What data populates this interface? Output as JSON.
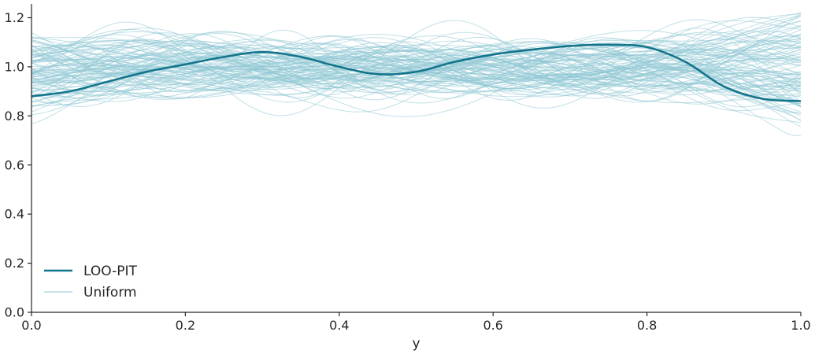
{
  "chart_data": {
    "type": "line",
    "title": "",
    "xlabel": "y",
    "ylabel": "",
    "xlim": [
      0,
      1
    ],
    "ylim": [
      0,
      1.25
    ],
    "xticks": [
      "0.0",
      "0.2",
      "0.4",
      "0.6",
      "0.8",
      "1.0"
    ],
    "yticks": [
      "0.0",
      "0.2",
      "0.4",
      "0.6",
      "0.8",
      "1.0",
      "1.2"
    ],
    "grid": false,
    "legend": "lower-left",
    "colors": {
      "loo_pit": "#13758c",
      "uniform": "#8ec7d4",
      "axis": "#262626"
    },
    "series": [
      {
        "name": "LOO-PIT",
        "x": [
          0.0,
          0.05,
          0.1,
          0.15,
          0.2,
          0.25,
          0.3,
          0.35,
          0.4,
          0.45,
          0.5,
          0.55,
          0.6,
          0.65,
          0.7,
          0.75,
          0.8,
          0.85,
          0.9,
          0.95,
          1.0
        ],
        "y": [
          0.88,
          0.9,
          0.94,
          0.98,
          1.01,
          1.04,
          1.06,
          1.04,
          1.0,
          0.97,
          0.98,
          1.02,
          1.05,
          1.07,
          1.085,
          1.09,
          1.08,
          1.02,
          0.92,
          0.87,
          0.86
        ]
      }
    ],
    "reference": {
      "name": "Uniform",
      "n_curves": 100,
      "band": [
        0.72,
        1.23
      ]
    }
  }
}
